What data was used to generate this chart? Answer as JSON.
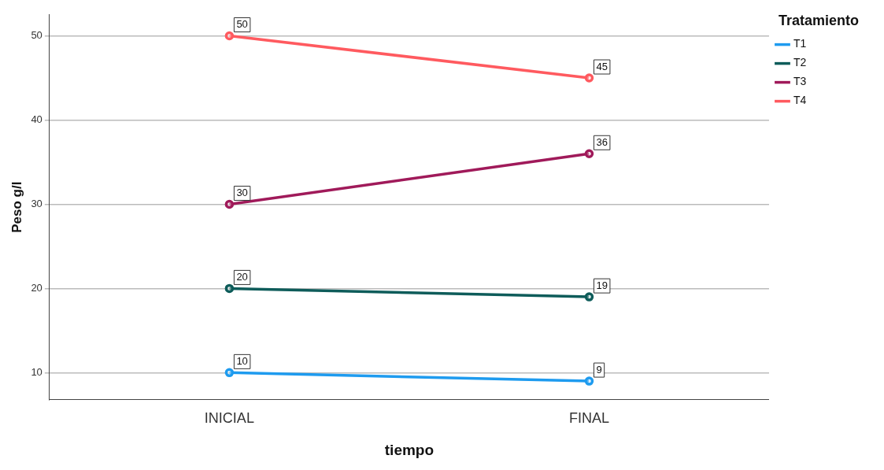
{
  "chart_data": {
    "type": "line",
    "xlabel": "tiempo",
    "ylabel": "Peso g/l",
    "legend_title": "Tratamiento",
    "categories": [
      "INICIAL",
      "FINAL"
    ],
    "series": [
      {
        "name": "T1",
        "color": "#1e9bef",
        "values": [
          10,
          9
        ]
      },
      {
        "name": "T2",
        "color": "#0e5c5a",
        "values": [
          20,
          19
        ]
      },
      {
        "name": "T3",
        "color": "#a01a5a",
        "values": [
          30,
          36
        ]
      },
      {
        "name": "T4",
        "color": "#ff5a5f",
        "values": [
          50,
          45
        ]
      }
    ],
    "ylim": [
      6.8,
      52.5
    ],
    "yticks": [
      10,
      20,
      30,
      40,
      50
    ],
    "grid": "y",
    "legend": "top right",
    "marker": "circle",
    "line_style": "solid",
    "data_labels": true
  }
}
